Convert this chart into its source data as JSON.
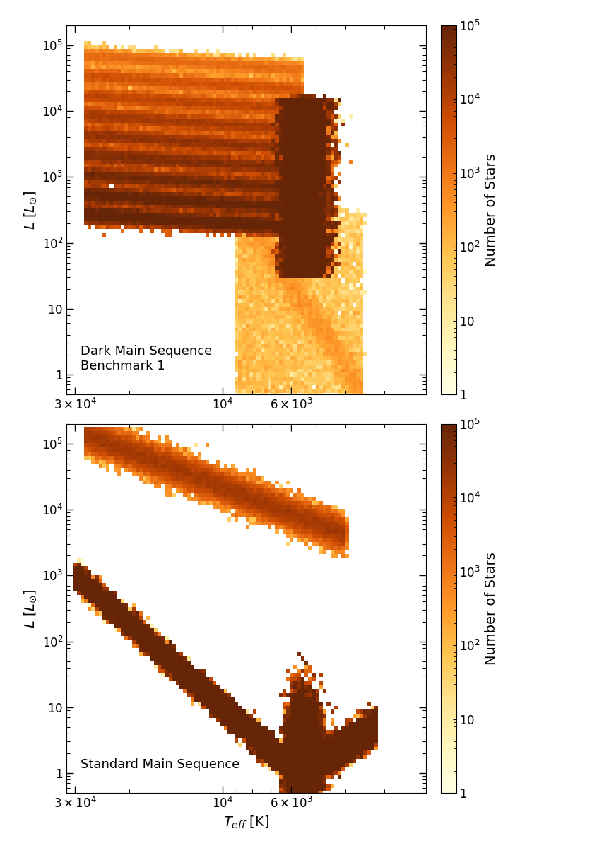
{
  "xlim_left": 32000,
  "xlim_right": 2200,
  "ylim": [
    0.5,
    200000
  ],
  "xlabel": "$T_{eff}$ [K]",
  "ylabel": "$L$ [$L_{\\odot}$]",
  "cbar_label": "Number of Stars",
  "cbar_vmin": 1,
  "cbar_vmax": 100000.0,
  "label_top": "Dark Main Sequence\nBenchmark 1",
  "label_bottom": "Standard Main Sequence",
  "cmap": "YlOrBr",
  "background_color": "#ffffff",
  "fontsize": 14,
  "tick_fontsize": 12,
  "n_T_bins": 100,
  "n_L_bins": 90
}
